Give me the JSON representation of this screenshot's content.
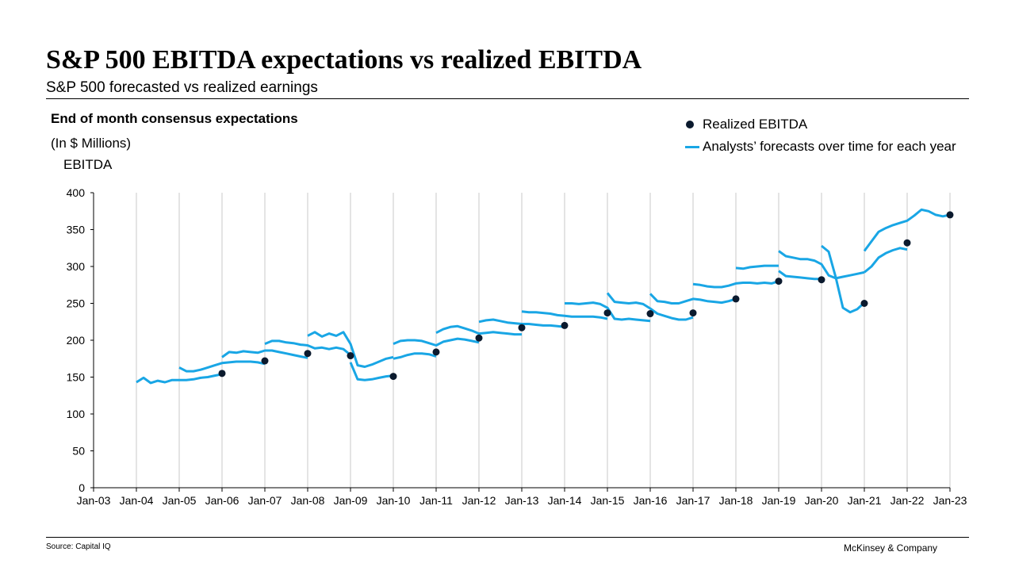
{
  "title": "S&P 500 EBITDA expectations vs realized EBITDA",
  "subtitle": "S&P 500 forecasted vs realized earnings",
  "panel_title": "End of month consensus expectations",
  "units": "(In $ Millions)",
  "footer": {
    "source": "Source: Capital IQ",
    "brand": "McKinsey & Company"
  },
  "colors": {
    "forecast": "#19a6e5",
    "realized": "#0b1a2e",
    "grid": "#c8c8c8"
  },
  "chart_data": {
    "type": "line",
    "title": "S&P 500 EBITDA expectations vs realized EBITDA",
    "subtitle": "S&P 500 forecasted vs realized earnings",
    "xlabel": "",
    "ylabel": "EBITDA",
    "xlim": [
      2003,
      2023
    ],
    "ylim": [
      0,
      400
    ],
    "x_ticks": [
      "Jan-03",
      "Jan-04",
      "Jan-05",
      "Jan-06",
      "Jan-07",
      "Jan-08",
      "Jan-09",
      "Jan-10",
      "Jan-11",
      "Jan-12",
      "Jan-13",
      "Jan-14",
      "Jan-15",
      "Jan-16",
      "Jan-17",
      "Jan-18",
      "Jan-19",
      "Jan-20",
      "Jan-21",
      "Jan-22",
      "Jan-23"
    ],
    "y_ticks": [
      0,
      50,
      100,
      150,
      200,
      250,
      300,
      350,
      400
    ],
    "grid": "vertical",
    "legend": {
      "position": "top-right",
      "entries": [
        "Realized EBITDA",
        "Analysts’ forecasts over time for each year"
      ]
    },
    "realized": {
      "name": "Realized EBITDA",
      "points": [
        {
          "x": "Jan-06",
          "y": 155
        },
        {
          "x": "Jan-07",
          "y": 172
        },
        {
          "x": "Jan-08",
          "y": 182
        },
        {
          "x": "Jan-09",
          "y": 179
        },
        {
          "x": "Jan-10",
          "y": 151
        },
        {
          "x": "Jan-11",
          "y": 184
        },
        {
          "x": "Jan-12",
          "y": 203
        },
        {
          "x": "Jan-13",
          "y": 217
        },
        {
          "x": "Jan-14",
          "y": 220
        },
        {
          "x": "Jan-15",
          "y": 237
        },
        {
          "x": "Jan-16",
          "y": 236
        },
        {
          "x": "Jan-17",
          "y": 237
        },
        {
          "x": "Jan-18",
          "y": 256
        },
        {
          "x": "Jan-19",
          "y": 280
        },
        {
          "x": "Jan-20",
          "y": 282
        },
        {
          "x": "Jan-21",
          "y": 250
        },
        {
          "x": "Jan-22",
          "y": 332
        },
        {
          "x": "Jan-23",
          "y": 370
        }
      ]
    },
    "forecast_series": [
      {
        "x": [
          "Jan-04",
          "Mar-04",
          "May-04",
          "Jul-04",
          "Sep-04",
          "Nov-04",
          "Jan-05",
          "Mar-05",
          "May-05",
          "Jul-05",
          "Sep-05",
          "Nov-05",
          "Jan-06"
        ],
        "y": [
          143,
          149,
          142,
          145,
          143,
          146,
          146,
          146,
          147,
          149,
          150,
          152,
          154
        ]
      },
      {
        "x": [
          "Jan-05",
          "Mar-05",
          "May-05",
          "Jul-05",
          "Sep-05",
          "Nov-05",
          "Jan-06",
          "Mar-06",
          "May-06",
          "Jul-06",
          "Sep-06",
          "Nov-06",
          "Jan-07"
        ],
        "y": [
          163,
          158,
          158,
          160,
          163,
          166,
          169,
          170,
          171,
          171,
          171,
          170,
          168
        ]
      },
      {
        "x": [
          "Jan-06",
          "Mar-06",
          "May-06",
          "Jul-06",
          "Sep-06",
          "Nov-06",
          "Jan-07",
          "Mar-07",
          "May-07",
          "Jul-07",
          "Sep-07",
          "Nov-07",
          "Jan-08"
        ],
        "y": [
          177,
          184,
          183,
          185,
          184,
          183,
          186,
          186,
          184,
          182,
          180,
          178,
          176
        ]
      },
      {
        "x": [
          "Jan-07",
          "Mar-07",
          "May-07",
          "Jul-07",
          "Sep-07",
          "Nov-07",
          "Jan-08",
          "Mar-08",
          "May-08",
          "Jul-08",
          "Sep-08",
          "Nov-08",
          "Jan-09"
        ],
        "y": [
          195,
          199,
          199,
          197,
          196,
          194,
          193,
          189,
          190,
          188,
          190,
          188,
          180
        ]
      },
      {
        "x": [
          "Jan-08",
          "Mar-08",
          "May-08",
          "Jul-08",
          "Sep-08",
          "Nov-08",
          "Jan-09",
          "Mar-09",
          "May-09",
          "Jul-09",
          "Sep-09",
          "Nov-09",
          "Jan-10"
        ],
        "y": [
          206,
          211,
          205,
          209,
          206,
          211,
          195,
          166,
          164,
          167,
          171,
          175,
          177
        ]
      },
      {
        "x": [
          "Jan-09",
          "Mar-09",
          "May-09",
          "Jul-09",
          "Sep-09",
          "Nov-09",
          "Jan-10"
        ],
        "y": [
          170,
          147,
          146,
          147,
          149,
          151,
          152
        ]
      },
      {
        "x": [
          "Jan-10",
          "Mar-10",
          "May-10",
          "Jul-10",
          "Sep-10",
          "Nov-10",
          "Jan-11",
          "Mar-11",
          "May-11",
          "Jul-11",
          "Sep-11",
          "Nov-11",
          "Jan-12"
        ],
        "y": [
          195,
          199,
          200,
          200,
          199,
          196,
          193,
          198,
          200,
          202,
          201,
          199,
          197
        ]
      },
      {
        "x": [
          "Jan-10",
          "Mar-10",
          "May-10",
          "Jul-10",
          "Sep-10",
          "Nov-10",
          "Jan-11"
        ],
        "y": [
          175,
          177,
          180,
          182,
          182,
          181,
          178
        ]
      },
      {
        "x": [
          "Jan-11",
          "Mar-11",
          "May-11",
          "Jul-11",
          "Sep-11",
          "Nov-11",
          "Jan-12",
          "Mar-12",
          "May-12",
          "Jul-12",
          "Sep-12",
          "Nov-12",
          "Jan-13"
        ],
        "y": [
          210,
          215,
          218,
          219,
          216,
          213,
          209,
          210,
          211,
          210,
          209,
          208,
          208
        ]
      },
      {
        "x": [
          "Jan-12",
          "Mar-12",
          "May-12",
          "Jul-12",
          "Sep-12",
          "Nov-12",
          "Jan-13",
          "Mar-13",
          "May-13",
          "Jul-13",
          "Sep-13",
          "Nov-13",
          "Jan-14"
        ],
        "y": [
          225,
          227,
          228,
          226,
          224,
          223,
          222,
          222,
          221,
          220,
          220,
          219,
          218
        ]
      },
      {
        "x": [
          "Jan-13",
          "Mar-13",
          "May-13",
          "Jul-13",
          "Sep-13",
          "Nov-13",
          "Jan-14",
          "Mar-14",
          "May-14",
          "Jul-14",
          "Sep-14",
          "Nov-14",
          "Jan-15"
        ],
        "y": [
          239,
          238,
          238,
          237,
          236,
          234,
          233,
          232,
          232,
          232,
          232,
          231,
          229
        ]
      },
      {
        "x": [
          "Jan-14",
          "Mar-14",
          "May-14",
          "Jul-14",
          "Sep-14",
          "Nov-14",
          "Jan-15",
          "Mar-15",
          "May-15",
          "Jul-15",
          "Sep-15",
          "Nov-15",
          "Jan-16"
        ],
        "y": [
          250,
          250,
          249,
          250,
          251,
          249,
          244,
          229,
          228,
          229,
          228,
          227,
          226
        ]
      },
      {
        "x": [
          "Jan-15",
          "Mar-15",
          "May-15",
          "Jul-15",
          "Sep-15",
          "Nov-15",
          "Jan-16",
          "Mar-16",
          "May-16",
          "Jul-16",
          "Sep-16",
          "Nov-16",
          "Jan-17"
        ],
        "y": [
          264,
          252,
          251,
          250,
          251,
          249,
          243,
          236,
          233,
          230,
          228,
          228,
          231
        ]
      },
      {
        "x": [
          "Jan-16",
          "Mar-16",
          "May-16",
          "Jul-16",
          "Sep-16",
          "Nov-16",
          "Jan-17",
          "Mar-17",
          "May-17",
          "Jul-17",
          "Sep-17",
          "Nov-17",
          "Jan-18"
        ],
        "y": [
          263,
          253,
          252,
          250,
          250,
          253,
          256,
          255,
          253,
          252,
          251,
          253,
          256
        ]
      },
      {
        "x": [
          "Jan-17",
          "Mar-17",
          "May-17",
          "Jul-17",
          "Sep-17",
          "Nov-17",
          "Jan-18",
          "Mar-18",
          "May-18",
          "Jul-18",
          "Sep-18",
          "Nov-18",
          "Jan-19"
        ],
        "y": [
          276,
          275,
          273,
          272,
          272,
          274,
          277,
          278,
          278,
          277,
          278,
          277,
          280
        ]
      },
      {
        "x": [
          "Jan-18",
          "Mar-18",
          "May-18",
          "Jul-18",
          "Sep-18",
          "Nov-18",
          "Jan-19"
        ],
        "y": [
          298,
          297,
          299,
          300,
          301,
          301,
          301
        ]
      },
      {
        "x": [
          "Jan-19",
          "Mar-19",
          "May-19",
          "Jul-19",
          "Sep-19",
          "Nov-19",
          "Jan-20",
          "Mar-20",
          "May-20",
          "Jul-20",
          "Sep-20",
          "Nov-20",
          "Jan-21"
        ],
        "y": [
          321,
          314,
          312,
          310,
          310,
          308,
          303,
          288,
          284,
          286,
          288,
          290,
          292
        ]
      },
      {
        "x": [
          "Jan-19",
          "Mar-19",
          "May-19",
          "Jul-19",
          "Sep-19",
          "Nov-19",
          "Jan-20"
        ],
        "y": [
          294,
          287,
          286,
          285,
          284,
          283,
          283
        ]
      },
      {
        "x": [
          "Jan-20",
          "Mar-20",
          "May-20",
          "Jul-20",
          "Sep-20",
          "Nov-20",
          "Jan-21"
        ],
        "y": [
          328,
          320,
          285,
          244,
          238,
          242,
          251
        ]
      },
      {
        "x": [
          "Jan-21",
          "Mar-21",
          "May-21",
          "Jul-21",
          "Sep-21",
          "Nov-21",
          "Jan-22",
          "Mar-22",
          "May-22",
          "Jul-22",
          "Sep-22",
          "Nov-22",
          "Jan-23"
        ],
        "y": [
          321,
          334,
          347,
          352,
          356,
          359,
          362,
          369,
          377,
          375,
          370,
          368,
          370
        ]
      },
      {
        "x": [
          "Jan-21",
          "Mar-21",
          "May-21",
          "Jul-21",
          "Sep-21",
          "Nov-21",
          "Jan-22"
        ],
        "y": [
          292,
          300,
          312,
          318,
          322,
          325,
          323
        ]
      }
    ]
  }
}
